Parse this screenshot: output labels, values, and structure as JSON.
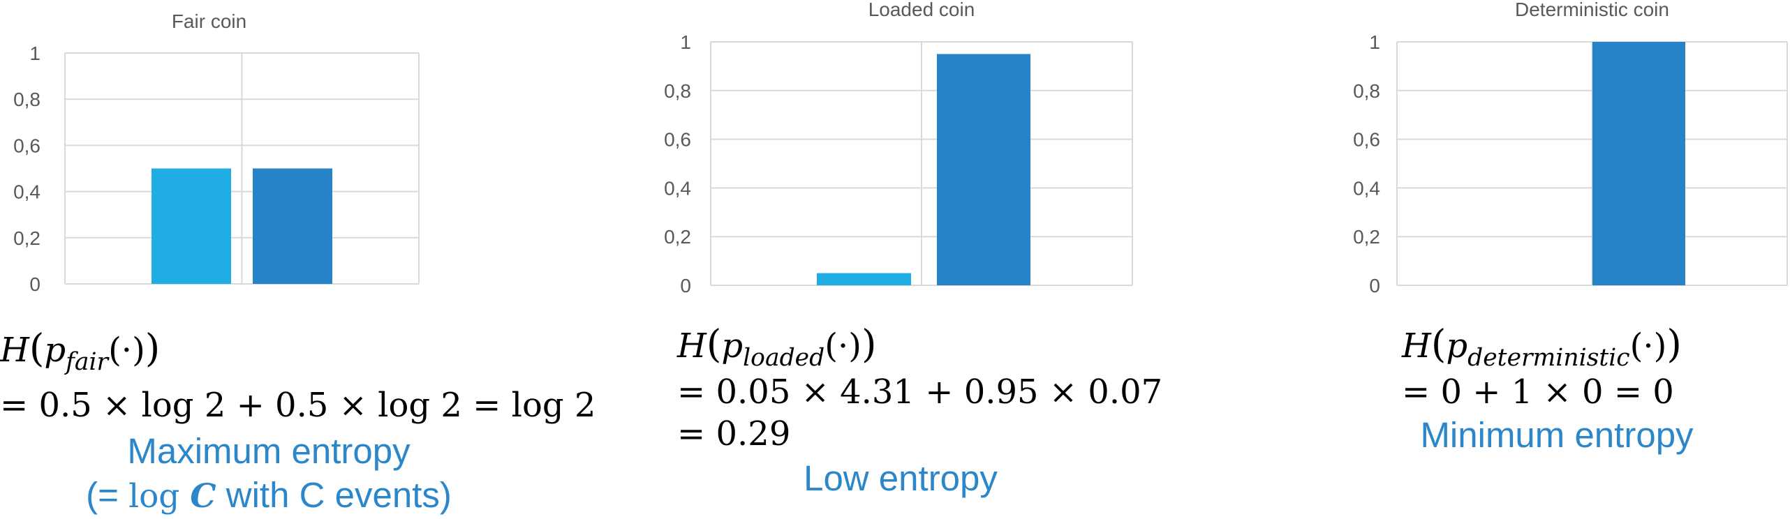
{
  "colors": {
    "bar_light": "#1fade4",
    "bar_dark": "#2783c7",
    "caption": "#2c86ca",
    "axis_text": "#595959",
    "grid": "#d9d9d9"
  },
  "chart_data": [
    {
      "type": "bar",
      "title": "Fair coin",
      "categories": [
        "",
        ""
      ],
      "values": [
        0.5,
        0.5
      ],
      "ylim": [
        0,
        1
      ],
      "yticks": [
        "0",
        "0,2",
        "0,4",
        "0,6",
        "0,8",
        "1"
      ],
      "grid": true,
      "legend": "none"
    },
    {
      "type": "bar",
      "title": "Loaded coin",
      "categories": [
        "",
        ""
      ],
      "values": [
        0.05,
        0.95
      ],
      "ylim": [
        0,
        1
      ],
      "yticks": [
        "0",
        "0,2",
        "0,4",
        "0,6",
        "0,8",
        "1"
      ],
      "grid": true,
      "legend": "none"
    },
    {
      "type": "bar",
      "title": "Deterministic coin",
      "categories": [
        "",
        ""
      ],
      "values": [
        0,
        1
      ],
      "ylim": [
        0,
        1
      ],
      "yticks": [
        "0",
        "0,2",
        "0,4",
        "0,6",
        "0,8",
        "1"
      ],
      "grid": true,
      "legend": "none"
    }
  ],
  "formulas": {
    "fair": {
      "h": "H",
      "p": "p",
      "sub": "fair",
      "dot": "(·)",
      "line2": "= 0.5 × log 2 + 0.5 × log 2 = log 2",
      "caption1": "Maximum entropy",
      "caption2_open": "(= ",
      "caption2_log": "log ",
      "caption2_c": "C",
      "caption2_rest": " with C events)"
    },
    "loaded": {
      "h": "H",
      "p": "p",
      "sub": "loaded",
      "dot": "(·)",
      "line2": "= 0.05 × 4.31 + 0.95 × 0.07",
      "line3": "= 0.29",
      "caption1": "Low entropy"
    },
    "deterministic": {
      "h": "H",
      "p": "p",
      "sub": "deterministic",
      "dot": "(·)",
      "line2": "= 0 + 1 × 0 = 0",
      "caption1": "Minimum entropy"
    }
  }
}
